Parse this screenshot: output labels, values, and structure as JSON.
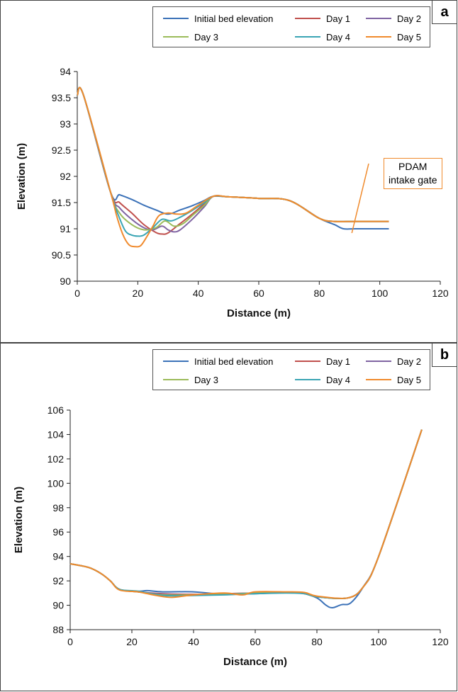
{
  "legend": {
    "series": [
      {
        "name": "Initial bed elevation",
        "color": "#3c72b8"
      },
      {
        "name": "Day 1",
        "color": "#c0504d"
      },
      {
        "name": "Day 2",
        "color": "#8064a2"
      },
      {
        "name": "Day 3",
        "color": "#9bbb59"
      },
      {
        "name": "Day 4",
        "color": "#3aa5b4"
      },
      {
        "name": "Day 5",
        "color": "#f08a2c"
      }
    ]
  },
  "chart_data": [
    {
      "panel_label": "a",
      "type": "line",
      "xlabel": "Distance (m)",
      "ylabel": "Elevation (m)",
      "xlim": [
        0,
        120
      ],
      "ylim": [
        90,
        94
      ],
      "xticks": [
        "0",
        "20",
        "40",
        "60",
        "80",
        "100",
        "120"
      ],
      "yticks": [
        "90",
        "90.5",
        "91",
        "91.5",
        "92",
        "92.5",
        "93",
        "93.5",
        "94"
      ],
      "legend_position": "top",
      "annotation": {
        "text_line1": "PDAM",
        "text_line2": "intake gate",
        "points_to": [
          91,
          91
        ]
      },
      "series": [
        {
          "name": "Initial bed elevation",
          "color": "#3c72b8",
          "x": [
            0,
            2,
            11,
            14,
            18,
            22,
            26,
            30,
            34,
            38,
            42,
            45,
            50,
            60,
            70,
            80,
            85,
            88,
            92,
            103
          ],
          "y": [
            93.55,
            93.56,
            91.7,
            91.65,
            91.56,
            91.45,
            91.36,
            91.28,
            91.36,
            91.44,
            91.54,
            91.62,
            91.61,
            91.58,
            91.54,
            91.2,
            91.08,
            91.0,
            91.0,
            91.0
          ]
        },
        {
          "name": "Day 1",
          "color": "#c0504d",
          "x": [
            0,
            2,
            11,
            14,
            18,
            22,
            26,
            28,
            30,
            34,
            38,
            42,
            45,
            50,
            60,
            70,
            80,
            85,
            92,
            103
          ],
          "y": [
            93.55,
            93.56,
            91.7,
            91.5,
            91.3,
            91.08,
            90.93,
            90.9,
            90.92,
            91.1,
            91.28,
            91.48,
            91.62,
            91.61,
            91.58,
            91.54,
            91.2,
            91.14,
            91.14,
            91.14
          ]
        },
        {
          "name": "Day 2",
          "color": "#8064a2",
          "x": [
            0,
            2,
            11,
            14,
            18,
            22,
            25,
            28,
            30,
            32,
            34,
            38,
            42,
            45,
            50,
            60,
            70,
            80,
            85,
            92,
            103
          ],
          "y": [
            93.55,
            93.56,
            91.7,
            91.4,
            91.18,
            91.02,
            90.98,
            91.05,
            90.98,
            90.94,
            90.98,
            91.18,
            91.42,
            91.62,
            91.61,
            91.58,
            91.54,
            91.2,
            91.14,
            91.14,
            91.14
          ]
        },
        {
          "name": "Day 3",
          "color": "#9bbb59",
          "x": [
            0,
            2,
            11,
            14,
            18,
            22,
            26,
            29,
            32,
            35,
            38,
            42,
            45,
            50,
            60,
            70,
            80,
            85,
            92,
            103
          ],
          "y": [
            93.55,
            93.56,
            91.7,
            91.3,
            91.08,
            90.98,
            91.02,
            91.15,
            91.05,
            91.1,
            91.25,
            91.45,
            91.62,
            91.61,
            91.58,
            91.54,
            91.2,
            91.14,
            91.14,
            91.14
          ]
        },
        {
          "name": "Day 4",
          "color": "#3aa5b4",
          "x": [
            0,
            2,
            11,
            14,
            16,
            18,
            20,
            22,
            25,
            28,
            31,
            34,
            38,
            42,
            45,
            50,
            60,
            70,
            80,
            85,
            92,
            103
          ],
          "y": [
            93.55,
            93.56,
            91.7,
            91.2,
            90.95,
            90.88,
            90.86,
            90.88,
            91.02,
            91.18,
            91.15,
            91.22,
            91.35,
            91.5,
            91.62,
            91.61,
            91.58,
            91.54,
            91.2,
            91.14,
            91.14,
            91.14
          ]
        },
        {
          "name": "Day 5",
          "color": "#f08a2c",
          "x": [
            0,
            2,
            11,
            13,
            15,
            17,
            19,
            21,
            23,
            25,
            27,
            30,
            33,
            36,
            40,
            45,
            50,
            60,
            70,
            80,
            85,
            92,
            103
          ],
          "y": [
            93.55,
            93.56,
            91.7,
            91.25,
            90.9,
            90.7,
            90.66,
            90.68,
            90.85,
            91.05,
            91.25,
            91.3,
            91.28,
            91.3,
            91.45,
            91.62,
            91.61,
            91.58,
            91.54,
            91.2,
            91.14,
            91.14,
            91.14
          ]
        }
      ]
    },
    {
      "panel_label": "b",
      "type": "line",
      "xlabel": "Distance (m)",
      "ylabel": "Elevation (m)",
      "xlim": [
        0,
        120
      ],
      "ylim": [
        88,
        106
      ],
      "xticks": [
        "0",
        "20",
        "40",
        "60",
        "80",
        "100",
        "120"
      ],
      "yticks": [
        "88",
        "90",
        "92",
        "94",
        "96",
        "98",
        "100",
        "102",
        "104",
        "106"
      ],
      "legend_position": "top",
      "series": [
        {
          "name": "Initial bed elevation",
          "color": "#3c72b8",
          "x": [
            0,
            6,
            10,
            13,
            16,
            22,
            25,
            30,
            40,
            50,
            60,
            70,
            75,
            80,
            83,
            85,
            88,
            91,
            95,
            100,
            114
          ],
          "y": [
            93.4,
            93.1,
            92.6,
            92.0,
            91.3,
            91.15,
            91.2,
            91.1,
            91.1,
            90.9,
            90.95,
            91.05,
            91.0,
            90.6,
            90.0,
            89.8,
            90.05,
            90.2,
            91.5,
            94.0,
            104.4
          ]
        },
        {
          "name": "Day 1",
          "color": "#c0504d",
          "x": [
            0,
            6,
            10,
            13,
            16,
            22,
            30,
            40,
            50,
            60,
            70,
            76,
            80,
            90,
            95,
            100,
            114
          ],
          "y": [
            93.4,
            93.1,
            92.6,
            92.0,
            91.3,
            91.1,
            90.95,
            90.9,
            90.95,
            91.0,
            91.05,
            90.95,
            90.7,
            90.6,
            91.5,
            94.0,
            104.4
          ]
        },
        {
          "name": "Day 2",
          "color": "#8064a2",
          "x": [
            0,
            6,
            10,
            13,
            16,
            22,
            30,
            40,
            50,
            60,
            70,
            76,
            80,
            90,
            95,
            100,
            114
          ],
          "y": [
            93.4,
            93.1,
            92.6,
            92.0,
            91.3,
            91.1,
            90.9,
            90.85,
            90.95,
            91.0,
            91.05,
            91.0,
            90.7,
            90.6,
            91.5,
            94.0,
            104.4
          ]
        },
        {
          "name": "Day 3",
          "color": "#9bbb59",
          "x": [
            0,
            6,
            10,
            13,
            16,
            22,
            30,
            40,
            50,
            60,
            70,
            76,
            80,
            90,
            95,
            100,
            114
          ],
          "y": [
            93.4,
            93.1,
            92.6,
            92.0,
            91.3,
            91.1,
            90.85,
            90.85,
            90.9,
            91.0,
            91.05,
            91.0,
            90.7,
            90.6,
            91.5,
            94.0,
            104.4
          ]
        },
        {
          "name": "Day 4",
          "color": "#3aa5b4",
          "x": [
            0,
            6,
            10,
            13,
            16,
            22,
            30,
            40,
            50,
            60,
            70,
            76,
            80,
            90,
            95,
            100,
            114
          ],
          "y": [
            93.4,
            93.1,
            92.6,
            92.0,
            91.3,
            91.15,
            90.8,
            90.8,
            90.85,
            90.95,
            91.0,
            90.95,
            90.7,
            90.6,
            91.5,
            94.0,
            104.4
          ]
        },
        {
          "name": "Day 5",
          "color": "#f08a2c",
          "x": [
            0,
            6,
            10,
            13,
            16,
            22,
            28,
            33,
            40,
            50,
            56,
            60,
            70,
            76,
            80,
            90,
            95,
            100,
            114
          ],
          "y": [
            93.4,
            93.1,
            92.6,
            92.0,
            91.25,
            91.1,
            90.8,
            90.65,
            90.85,
            91.0,
            90.85,
            91.1,
            91.1,
            91.05,
            90.75,
            90.6,
            91.5,
            94.0,
            104.4
          ]
        }
      ]
    }
  ]
}
